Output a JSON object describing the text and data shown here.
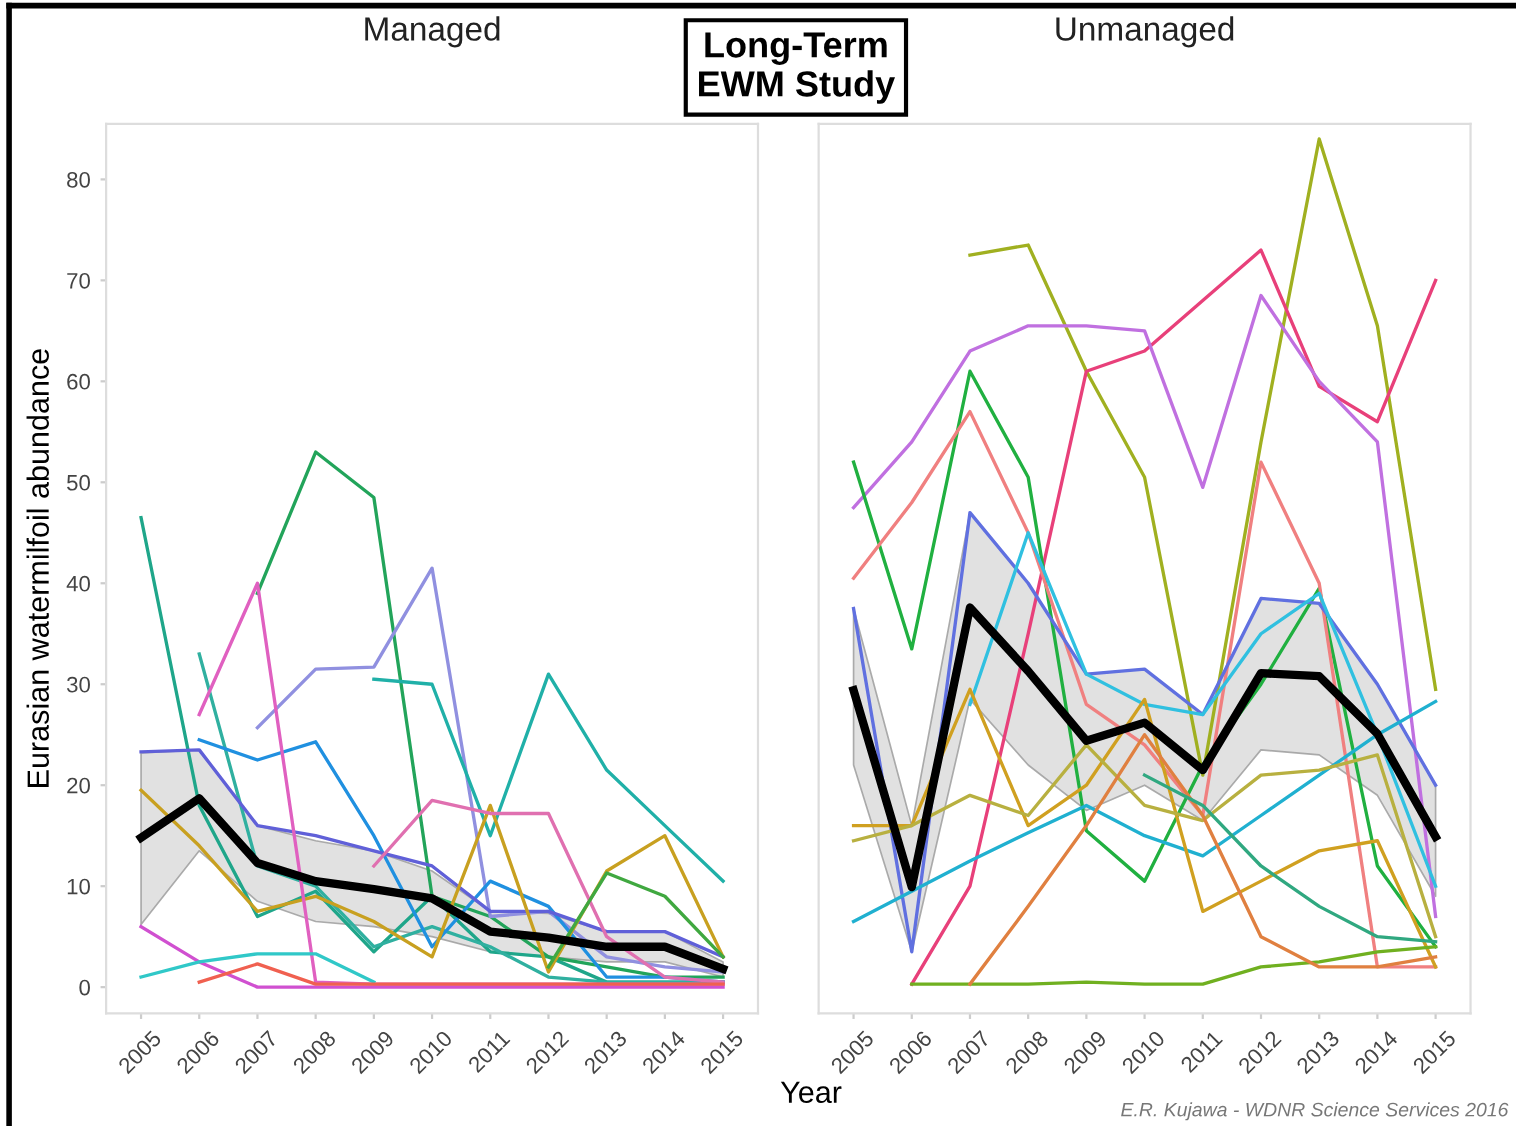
{
  "chart_data": [
    {
      "type": "line",
      "title": "Long-Term\nEWM Study",
      "subtitle": "Managed",
      "xlabel": "Year",
      "ylabel": "Eurasian watermilfoil abundance",
      "xlim": [
        2004.4,
        2015.6
      ],
      "ylim": [
        -2.6,
        85.5
      ],
      "xticks": [
        2005,
        2006,
        2007,
        2008,
        2009,
        2010,
        2011,
        2012,
        2013,
        2014,
        2015
      ],
      "yticks": [
        0,
        10,
        20,
        30,
        40,
        50,
        60,
        70,
        80
      ],
      "grid": false,
      "legend": false,
      "x": [
        2005,
        2006,
        2007,
        2008,
        2009,
        2010,
        2011,
        2012,
        2013,
        2014,
        2015
      ],
      "series": [
        {
          "color": "#1fa68a",
          "values": [
            46.5,
            18,
            7,
            9.5,
            3.5,
            9,
            3.5,
            3,
            0.5,
            0.5,
            0.5
          ]
        },
        {
          "color": "#22a45a",
          "values": [
            null,
            null,
            39,
            53,
            48.5,
            9,
            7,
            3,
            2,
            1,
            1
          ]
        },
        {
          "color": "#30b0a0",
          "values": [
            null,
            33,
            12,
            10,
            4,
            6,
            4,
            1,
            0.5,
            0.5,
            0.5
          ]
        },
        {
          "color": "#9090e0",
          "values": [
            null,
            null,
            25.7,
            31.5,
            31.7,
            41.5,
            7,
            7.5,
            3,
            2,
            1.5
          ]
        },
        {
          "color": "#20b0a8",
          "values": [
            null,
            null,
            null,
            null,
            30.5,
            30,
            15,
            31,
            21.5,
            16,
            10.5
          ]
        },
        {
          "color": "#2090e0",
          "values": [
            null,
            24.5,
            22.5,
            24.3,
            15,
            4,
            10.5,
            8,
            1,
            1,
            0.5
          ]
        },
        {
          "color": "#6060d8",
          "values": [
            23.3,
            23.5,
            16,
            15,
            13.5,
            12,
            7.5,
            7.5,
            5.5,
            5.5,
            3
          ]
        },
        {
          "color": "#c8a020",
          "values": [
            19.5,
            14,
            7.5,
            9,
            6.5,
            3,
            18,
            1.5,
            11.5,
            15,
            3
          ]
        },
        {
          "color": "#e060c0",
          "values": [
            null,
            27,
            40,
            0.5,
            0.3,
            0.3,
            0.3,
            0.3,
            0.3,
            0.3,
            0.3
          ]
        },
        {
          "color": "#e070b0",
          "values": [
            null,
            null,
            null,
            null,
            12,
            18.5,
            17.2,
            17.2,
            5,
            1,
            0.5
          ]
        },
        {
          "color": "#d050d0",
          "values": [
            6,
            2.5,
            0,
            0,
            0,
            0,
            0,
            0,
            0,
            0,
            0
          ]
        },
        {
          "color": "#30c8c8",
          "values": [
            1,
            2.5,
            3.3,
            3.3,
            0.5,
            null,
            null,
            null,
            null,
            null,
            null
          ]
        },
        {
          "color": "#f06050",
          "values": [
            null,
            0.5,
            2.3,
            0.3,
            0.3,
            0.3,
            0.3,
            0.3,
            0.3,
            0.3,
            0.3
          ]
        },
        {
          "color": "#40a840",
          "values": [
            null,
            null,
            null,
            null,
            null,
            null,
            null,
            2,
            11.3,
            9,
            3
          ]
        },
        {
          "color": "#000000",
          "values": [
            14.8,
            18.7,
            12.3,
            10.5,
            9.7,
            8.8,
            5.5,
            4.9,
            4.0,
            4.0,
            1.8
          ],
          "lower": [
            6.2,
            13.5,
            8.5,
            6.5,
            6,
            5,
            3.5,
            3,
            2.5,
            2.5,
            1
          ],
          "upper": [
            23.2,
            23.5,
            16,
            14.5,
            13.5,
            11.5,
            7.5,
            7.3,
            5.5,
            5.5,
            2.5
          ]
        }
      ]
    },
    {
      "type": "line",
      "subtitle": "Unmanaged",
      "xlim": [
        2004.4,
        2015.6
      ],
      "ylim": [
        -2.6,
        85.5
      ],
      "xticks": [
        2005,
        2006,
        2007,
        2008,
        2009,
        2010,
        2011,
        2012,
        2013,
        2014,
        2015
      ],
      "tick_labels": "x",
      "grid": false,
      "legend": false,
      "annotations": [
        "E.R. Kujawa - WDNR Science Services 2016"
      ],
      "x": [
        2005,
        2006,
        2007,
        2008,
        2009,
        2010,
        2011,
        2012,
        2013,
        2014,
        2015
      ],
      "series": [
        {
          "color": "#a0b020",
          "values": [
            null,
            null,
            72.5,
            73.5,
            61,
            50.5,
            21,
            54,
            84,
            65.5,
            29.5
          ]
        },
        {
          "color": "#e8407a",
          "values": [
            null,
            0.3,
            10,
            35,
            61,
            63,
            68,
            73,
            59.5,
            56,
            70
          ]
        },
        {
          "color": "#c070e0",
          "values": [
            47.5,
            54,
            63,
            65.5,
            65.5,
            65,
            49.5,
            68.5,
            60,
            54,
            7
          ]
        },
        {
          "color": "#20b040",
          "values": [
            52,
            33.5,
            61,
            50.5,
            15.5,
            10.5,
            22,
            30,
            39.5,
            12,
            4
          ]
        },
        {
          "color": "#f08080",
          "values": [
            40.5,
            48,
            57,
            45,
            28,
            24,
            17,
            52,
            40,
            2,
            2
          ]
        },
        {
          "color": "#6070e0",
          "values": [
            37.5,
            3.5,
            47,
            40,
            31,
            31.5,
            27,
            38.5,
            38,
            30,
            20
          ]
        },
        {
          "color": "#20b0d0",
          "values": [
            6.5,
            9.5,
            12.5,
            15.3,
            18,
            15,
            13,
            17,
            21,
            25,
            28.3
          ]
        },
        {
          "color": "#30c0e0",
          "values": [
            null,
            null,
            28,
            45,
            31,
            28,
            27,
            35,
            39,
            25,
            10
          ]
        },
        {
          "color": "#d0a020",
          "values": [
            16,
            16,
            29.5,
            16,
            20,
            28.5,
            7.5,
            10.5,
            13.5,
            14.5,
            2
          ]
        },
        {
          "color": "#b8b040",
          "values": [
            14.5,
            16,
            19,
            17,
            24,
            18,
            16.5,
            21,
            21.5,
            23,
            5
          ]
        },
        {
          "color": "#70b020",
          "values": [
            null,
            0.3,
            0.3,
            0.3,
            0.5,
            0.3,
            0.3,
            2,
            2.5,
            3.5,
            4
          ]
        },
        {
          "color": "#e08040",
          "values": [
            null,
            null,
            0.3,
            8,
            16,
            25,
            17,
            5,
            2,
            2,
            3
          ]
        },
        {
          "color": "#30a880",
          "values": [
            null,
            null,
            null,
            null,
            null,
            21,
            18,
            12,
            8,
            5,
            4.5
          ]
        },
        {
          "color": "#000000",
          "values": [
            29.4,
            9.9,
            37.6,
            31.3,
            24.4,
            26.2,
            21.5,
            31.1,
            30.8,
            25.1,
            14.9
          ],
          "lower": [
            22,
            3.5,
            28.5,
            22,
            17.5,
            20,
            16.5,
            23.5,
            23,
            19,
            9
          ],
          "upper": [
            37.5,
            16,
            47,
            40,
            31,
            31.5,
            27,
            38.5,
            38,
            30,
            20
          ]
        }
      ]
    }
  ]
}
